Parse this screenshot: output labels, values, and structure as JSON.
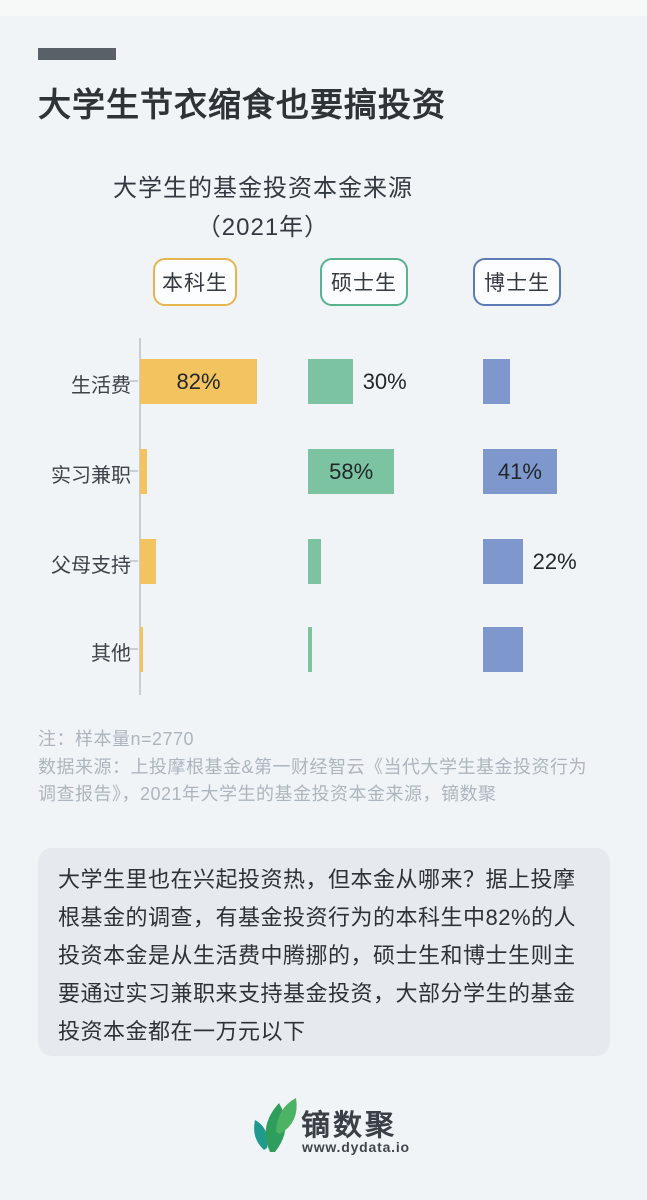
{
  "header": {
    "title": "大学生节衣缩食也要搞投资"
  },
  "chart": {
    "title_line1": "大学生的基金投资本金来源",
    "title_line2": "（2021年）",
    "legend": [
      {
        "label": "本科生",
        "color": "#e6b54e"
      },
      {
        "label": "硕士生",
        "color": "#58b28f"
      },
      {
        "label": "博士生",
        "color": "#5d7ab6"
      }
    ]
  },
  "chart_data": {
    "type": "bar",
    "orientation": "horizontal",
    "title": "大学生的基金投资本金来源（2021年）",
    "unit": "%",
    "axis_range": [
      0,
      100
    ],
    "grid": false,
    "legend_position": "top",
    "categories": [
      "生活费",
      "实习兼职",
      "父母支持",
      "其他"
    ],
    "series": [
      {
        "name": "本科生",
        "color": "#f2c35f",
        "values": [
          82,
          5,
          11,
          2
        ],
        "labels": [
          "82%",
          "",
          "",
          ""
        ]
      },
      {
        "name": "硕士生",
        "color": "#7cc3a1",
        "values": [
          30,
          58,
          9,
          3
        ],
        "labels": [
          "30%",
          "58%",
          "",
          ""
        ]
      },
      {
        "name": "博士生",
        "color": "#7e97cc",
        "values": [
          15,
          41,
          22,
          22
        ],
        "labels": [
          "",
          "41%",
          "22%",
          ""
        ]
      }
    ]
  },
  "notes": {
    "line1": "注：样本量n=2770",
    "line2": "数据来源：上投摩根基金&第一财经智云《当代大学生基金投资行为",
    "line3": "调查报告》，2021年大学生的基金投资本金来源，镝数聚"
  },
  "summary": {
    "text": "大学生里也在兴起投资热，但本金从哪来？据上投摩根基金的调查，有基金投资行为的本科生中82%的人投资本金是从生活费中腾挪的，硕士生和博士生则主要通过实习兼职来支持基金投资，大部分学生的基金投资本金都在一万元以下"
  },
  "footer": {
    "brand": "镝数聚",
    "url": "www.dydata.io"
  }
}
